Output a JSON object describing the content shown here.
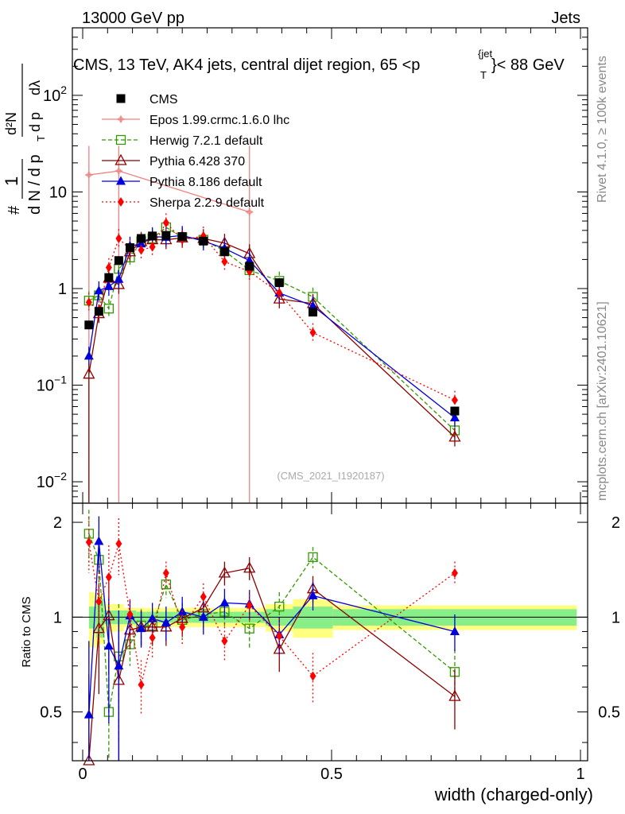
{
  "header": {
    "left": "13000 GeV pp",
    "right": "Jets"
  },
  "side_labels": {
    "rivet": "Rivet 4.1.0, ≥ 100k events",
    "mcplots": "mcplots.cern.ch [arXiv:2401.10621]"
  },
  "watermark": "(CMS_2021_I1920187)",
  "chart_data": {
    "type": "line",
    "title": "CMS, 13 TeV, AK4 jets, central dijet region, 65 < p_T^{jet} < 88 GeV",
    "title_parts": {
      "main": "CMS, 13 TeV, AK4 jets, central dijet region, 65 <p",
      "sup": "{jet",
      "sub": "T",
      "tail": "}< 88 GeV"
    },
    "xlabel": "width (charged-only)",
    "ylabel_main": "1/N dN/dp_T dλ · d²N/dp_T dλ",
    "ylabel_main_parts": {
      "hash": "#",
      "one": "1",
      "denom": "d N / d p",
      "sub": "T",
      "num2": "d²N",
      "den2": "d p",
      "lam": "dλ"
    },
    "ylabel_ratio": "Ratio to CMS",
    "xlim": [
      0,
      1
    ],
    "ylim_main": [
      0.006,
      500
    ],
    "ylim_ratio": [
      0.35,
      2.3
    ],
    "x_ticks": [
      0,
      0.5,
      1
    ],
    "x_tick_labels": [
      "0",
      "0.5",
      "1"
    ],
    "y_ticks_main": [
      {
        "value": 0.01,
        "base": "10",
        "exp": "−2"
      },
      {
        "value": 0.1,
        "base": "10",
        "exp": "−1"
      },
      {
        "value": 1,
        "base": "1",
        "exp": ""
      },
      {
        "value": 10,
        "base": "10",
        "exp": ""
      },
      {
        "value": 100,
        "base": "10",
        "exp": "2"
      }
    ],
    "y_ticks_ratio": [
      {
        "value": 0.5,
        "label": "0.5"
      },
      {
        "value": 1,
        "label": "1"
      },
      {
        "value": 2,
        "label": "2"
      }
    ],
    "x": [
      0.0125,
      0.0325,
      0.0525,
      0.0725,
      0.095,
      0.1175,
      0.14,
      0.1675,
      0.2,
      0.2425,
      0.285,
      0.335,
      0.395,
      0.4625,
      0.7475
    ],
    "bin_edges": [
      0.0125,
      0.0275,
      0.0425,
      0.0575,
      0.0825,
      0.1075,
      0.1275,
      0.1525,
      0.1825,
      0.2175,
      0.2675,
      0.3025,
      0.3675,
      0.4225,
      0.5025,
      0.9925
    ],
    "data_band_inner": [
      0.08,
      0.14,
      0.05,
      0.05,
      0.05,
      0.04,
      0.04,
      0.04,
      0.04,
      0.04,
      0.04,
      0.04,
      0.06,
      0.08,
      0.06
    ],
    "data_band_outer": [
      0.2,
      0.18,
      0.1,
      0.1,
      0.07,
      0.07,
      0.07,
      0.07,
      0.07,
      0.07,
      0.07,
      0.07,
      0.1,
      0.14,
      0.09
    ],
    "series": [
      {
        "name": "CMS",
        "color": "#000000",
        "marker": "square-filled",
        "dash": "",
        "x": [
          0.0125,
          0.0325,
          0.0525,
          0.0725,
          0.095,
          0.1175,
          0.14,
          0.1675,
          0.2,
          0.2425,
          0.285,
          0.335,
          0.395,
          0.4625,
          0.7475
        ],
        "values": [
          0.42,
          0.58,
          1.3,
          1.95,
          2.65,
          3.3,
          3.5,
          3.55,
          3.45,
          3.1,
          2.4,
          1.7,
          1.15,
          0.57,
          0.054
        ],
        "ratio": [
          1,
          1,
          1,
          1,
          1,
          1,
          1,
          1,
          1,
          1,
          1,
          1,
          1,
          1,
          1
        ]
      },
      {
        "name": "Epos 1.99.crmc.1.6.0 lhc",
        "color": "#f08080",
        "marker": "cross",
        "dash": "",
        "x": [
          0.0125,
          0.0725,
          0.335
        ],
        "values": [
          15,
          16.5,
          6.2
        ],
        "ratio": [
          null,
          null,
          null
        ]
      },
      {
        "name": "Herwig 7.2.1 default",
        "color": "#339900",
        "marker": "square-open",
        "dash": "5,3",
        "x": [
          0.0125,
          0.0325,
          0.0525,
          0.0725,
          0.095,
          0.1175,
          0.14,
          0.1675,
          0.2,
          0.2425,
          0.285,
          0.335,
          0.395,
          0.4625,
          0.7475
        ],
        "values": [
          0.75,
          0.85,
          0.62,
          1.6,
          2.1,
          3.1,
          3.3,
          4.3,
          3.4,
          3.2,
          2.45,
          1.55,
          1.2,
          0.82,
          0.034
        ],
        "ratio": [
          1.84,
          1.52,
          0.5,
          0.75,
          0.82,
          0.94,
          0.94,
          1.27,
          0.98,
          1.02,
          1.04,
          0.92,
          1.08,
          1.55,
          0.67
        ]
      },
      {
        "name": "Pythia 6.428 370",
        "color": "#8b0000",
        "marker": "triangle-open",
        "dash": "",
        "x": [
          0.0125,
          0.0325,
          0.0525,
          0.0725,
          0.095,
          0.1175,
          0.14,
          0.1675,
          0.2,
          0.2425,
          0.285,
          0.335,
          0.395,
          0.4625,
          0.7475
        ],
        "values": [
          0.13,
          0.55,
          1.28,
          1.1,
          2.4,
          3.05,
          3.2,
          3.2,
          3.35,
          3.3,
          2.95,
          2.3,
          0.78,
          0.7,
          0.029
        ],
        "ratio": [
          0.31,
          0.92,
          1.01,
          0.63,
          0.91,
          0.93,
          0.93,
          0.93,
          0.99,
          1.07,
          1.38,
          1.43,
          0.79,
          1.23,
          0.56
        ]
      },
      {
        "name": "Pythia 8.186 default",
        "color": "#0000dd",
        "marker": "triangle-filled",
        "dash": "",
        "x": [
          0.0125,
          0.0325,
          0.0525,
          0.0725,
          0.095,
          0.1175,
          0.14,
          0.1675,
          0.2,
          0.2425,
          0.285,
          0.335,
          0.395,
          0.4625,
          0.7475
        ],
        "values": [
          0.2,
          0.95,
          1.05,
          1.25,
          2.75,
          2.9,
          3.45,
          3.4,
          3.55,
          3.1,
          2.6,
          1.95,
          0.9,
          0.66,
          0.046
        ],
        "ratio": [
          0.49,
          1.74,
          0.81,
          0.7,
          1.01,
          0.92,
          0.99,
          0.96,
          1.04,
          1.0,
          1.11,
          1.1,
          0.88,
          1.17,
          0.9
        ]
      },
      {
        "name": "Sherpa 2.2.9 default",
        "color": "#ff0000",
        "marker": "diamond-filled",
        "dash": "2,3",
        "x": [
          0.0125,
          0.0325,
          0.0525,
          0.0725,
          0.095,
          0.1175,
          0.14,
          0.1675,
          0.2,
          0.2425,
          0.285,
          0.335,
          0.395,
          0.4625,
          0.7475
        ],
        "values": [
          0.72,
          0.6,
          1.65,
          3.3,
          2.55,
          2.5,
          2.7,
          4.8,
          3.2,
          3.5,
          1.9,
          1.5,
          0.9,
          0.35,
          0.07
        ],
        "ratio": [
          1.73,
          1.12,
          1.34,
          1.71,
          1.02,
          0.61,
          0.86,
          1.38,
          0.93,
          1.16,
          0.84,
          1.09,
          0.87,
          0.65,
          1.38
        ]
      }
    ]
  }
}
